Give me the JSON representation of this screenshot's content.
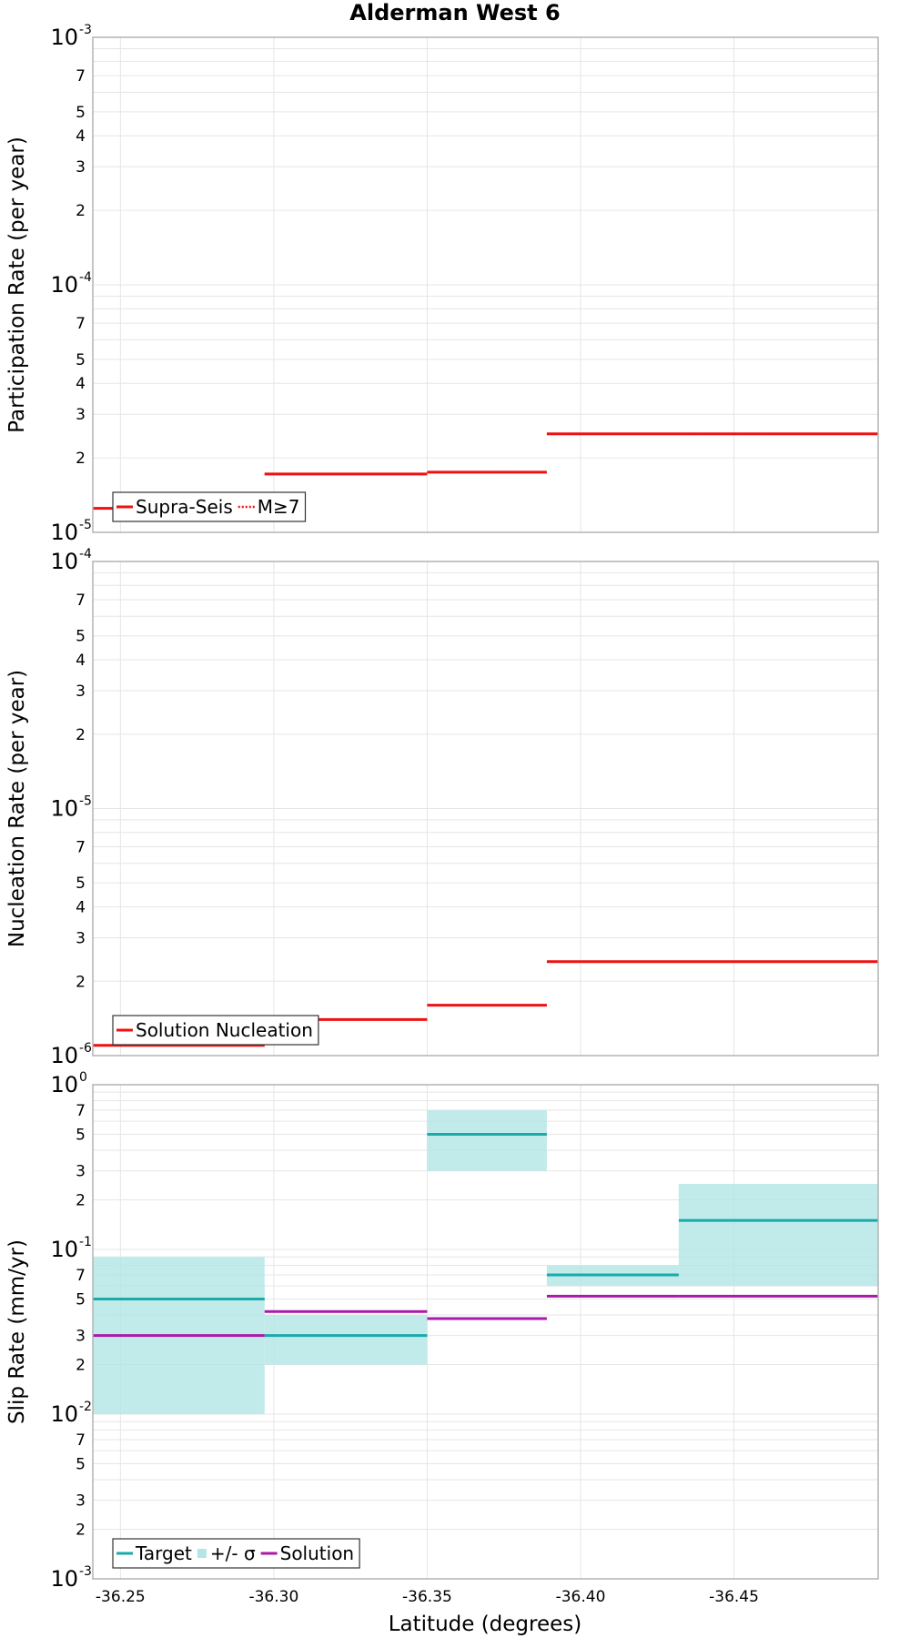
{
  "chart_data": {
    "title": "Alderman West 6",
    "type": "line",
    "xlabel": "Latitude (degrees)",
    "x_ticks": [
      "-36.25",
      "-36.30",
      "-36.35",
      "-36.40",
      "-36.45"
    ],
    "xlim": [
      -36.241,
      -36.497
    ],
    "panels": [
      {
        "ylabel": "Participation Rate (per year)",
        "ylim": [
          1e-05,
          0.001
        ],
        "yscale": "log",
        "series": [
          {
            "name": "Supra-Seis",
            "color": "#ee1111",
            "style": "solid",
            "segments": [
              [
                -36.241,
                -36.297,
                1.25e-05
              ],
              [
                -36.297,
                -36.35,
                1.72e-05
              ],
              [
                -36.35,
                -36.389,
                1.75e-05
              ],
              [
                -36.389,
                -36.497,
                2.5e-05
              ]
            ]
          },
          {
            "name": "M≥7",
            "color": "#ee1111",
            "style": "dotted",
            "segments": [
              [
                -36.241,
                -36.297,
                1.25e-05
              ],
              [
                -36.297,
                -36.35,
                1.72e-05
              ],
              [
                -36.35,
                -36.389,
                1.75e-05
              ],
              [
                -36.389,
                -36.497,
                2.5e-05
              ]
            ]
          }
        ],
        "legend": [
          {
            "label": "Supra-Seis",
            "kind": "line",
            "color": "#ee1111"
          },
          {
            "label": "M≥7",
            "kind": "dotted",
            "color": "#ee1111"
          }
        ],
        "legend_position": "bottom-left"
      },
      {
        "ylabel": "Nucleation Rate (per year)",
        "ylim": [
          1e-06,
          0.0001
        ],
        "yscale": "log",
        "series": [
          {
            "name": "Solution Nucleation",
            "color": "#ee1111",
            "style": "solid",
            "segments": [
              [
                -36.241,
                -36.297,
                1.1e-06
              ],
              [
                -36.297,
                -36.35,
                1.4e-06
              ],
              [
                -36.35,
                -36.389,
                1.6e-06
              ],
              [
                -36.389,
                -36.497,
                2.4e-06
              ]
            ]
          }
        ],
        "legend": [
          {
            "label": "Solution Nucleation",
            "kind": "line",
            "color": "#ee1111"
          }
        ],
        "legend_position": "bottom-left"
      },
      {
        "ylabel": "Slip Rate (mm/yr)",
        "ylim": [
          0.001,
          1
        ],
        "yscale": "log",
        "bands": [
          {
            "color": "#b2e6e6",
            "segments": [
              [
                -36.241,
                -36.297,
                0.01,
                0.09
              ],
              [
                -36.297,
                -36.35,
                0.02,
                0.04
              ],
              [
                -36.35,
                -36.389,
                0.3,
                0.7
              ],
              [
                -36.389,
                -36.432,
                0.06,
                0.08
              ],
              [
                -36.432,
                -36.497,
                0.06,
                0.25
              ]
            ]
          }
        ],
        "series": [
          {
            "name": "Target",
            "color": "#1aaaaa",
            "style": "solid",
            "segments": [
              [
                -36.241,
                -36.297,
                0.05
              ],
              [
                -36.297,
                -36.35,
                0.03
              ],
              [
                -36.35,
                -36.389,
                0.5
              ],
              [
                -36.389,
                -36.432,
                0.07
              ],
              [
                -36.432,
                -36.497,
                0.15
              ]
            ]
          },
          {
            "name": "Solution",
            "color": "#aa1aaa",
            "style": "solid",
            "segments": [
              [
                -36.241,
                -36.297,
                0.03
              ],
              [
                -36.297,
                -36.35,
                0.042
              ],
              [
                -36.35,
                -36.389,
                0.038
              ],
              [
                -36.389,
                -36.432,
                0.052
              ],
              [
                -36.432,
                -36.497,
                0.052
              ]
            ]
          }
        ],
        "legend": [
          {
            "label": "Target",
            "kind": "line",
            "color": "#1aaaaa"
          },
          {
            "label": "+/- σ",
            "kind": "box",
            "color": "#b2e6e6"
          },
          {
            "label": "Solution",
            "kind": "line",
            "color": "#aa1aaa"
          }
        ],
        "legend_position": "bottom-left"
      }
    ]
  }
}
